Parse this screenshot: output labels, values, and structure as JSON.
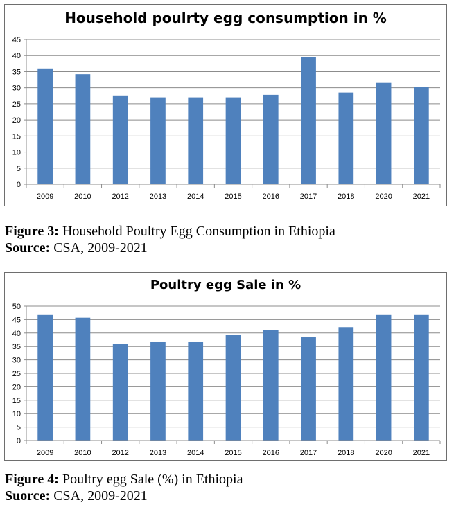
{
  "chart_data": [
    {
      "type": "bar",
      "title": "Household poulrty egg consumption in %",
      "categories": [
        "2009",
        "2010",
        "2012",
        "2013",
        "2014",
        "2015",
        "2016",
        "2017",
        "2018",
        "2020",
        "2021"
      ],
      "values": [
        36,
        34.2,
        27.6,
        27,
        27,
        27,
        27.8,
        39.6,
        28.5,
        31.5,
        30.3
      ],
      "ylim": [
        0,
        45
      ],
      "yticks": [
        0,
        5,
        10,
        15,
        20,
        25,
        30,
        35,
        40,
        45
      ],
      "grid": true,
      "bar_color": "#4f81bd"
    },
    {
      "type": "bar",
      "title": "Poultry egg Sale in %",
      "categories": [
        "2009",
        "2010",
        "2012",
        "2013",
        "2014",
        "2015",
        "2016",
        "2017",
        "2018",
        "2020",
        "2021"
      ],
      "values": [
        46.7,
        45.7,
        36,
        36.6,
        36.6,
        39.4,
        41.2,
        38.4,
        42.2,
        46.7,
        46.7
      ],
      "ylim": [
        0,
        50
      ],
      "yticks": [
        0,
        5,
        10,
        15,
        20,
        25,
        30,
        35,
        40,
        45,
        50
      ],
      "grid": true,
      "bar_color": "#4f81bd"
    }
  ],
  "captions": {
    "fig3_label": "Figure 3:",
    "fig3_text": " Household Poultry Egg Consumption in Ethiopia",
    "fig3_source_label": "Source:",
    "fig3_source_text": " CSA, 2009-2021",
    "fig4_label": "Figure 4:",
    "fig4_text": " Poultry egg Sale (%) in Ethiopia",
    "fig4_source_label": "Suorce:",
    "fig4_source_text": " CSA, 2009-2021"
  }
}
